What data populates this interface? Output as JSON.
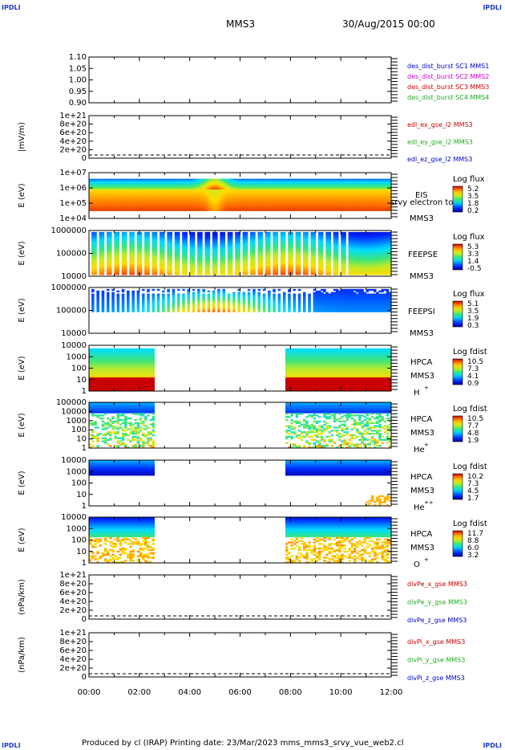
{
  "corner_tag": "IPDLI",
  "header": {
    "left": "MMS3",
    "right": "30/Aug/2015 00:00"
  },
  "footer": "Produced by cl (IRAP)   Printing date: 23/Mar/2023   mms_mms3_srvy_vue_web2.cl",
  "colors": {
    "mms1": "#0000cc",
    "mms2": "#cc00cc",
    "mms3": "#cc0000",
    "mms4": "#22aa22",
    "x": "#cc0000",
    "y": "#22aa22",
    "z": "#0000cc"
  },
  "chart_data": [
    {
      "id": "p1",
      "type": "line",
      "ylabel": "",
      "yticks": [
        "1.10",
        "1.05",
        "1.00",
        "0.95",
        "0.90"
      ],
      "ylim": [
        0.9,
        1.1
      ],
      "legend": [
        {
          "text": "des_dist_burst SC1 MMS1",
          "color": "#0000cc"
        },
        {
          "text": "des_dist_burst SC2 MMS2",
          "color": "#cc00cc"
        },
        {
          "text": "des_dist_burst SC3 MMS3",
          "color": "#cc0000"
        },
        {
          "text": "des_dist_burst SC4 MMS4",
          "color": "#22aa22"
        }
      ]
    },
    {
      "id": "p2",
      "type": "line",
      "ylabel": "|mV/m)",
      "yticks": [
        "1e+21",
        "8e+20",
        "6e+20",
        "4e+20",
        "2e+20",
        "0"
      ],
      "ylim": [
        0,
        1e+21
      ],
      "legend": [
        {
          "text": "edl_ex_gse_l2 MMS3",
          "color": "#cc0000"
        },
        {
          "text": "edl_ey_gse_l2 MMS3",
          "color": "#22aa22"
        },
        {
          "text": "edl_ez_gse_l2 MMS3",
          "color": "#0000cc"
        }
      ]
    },
    {
      "id": "p3",
      "type": "heatmap",
      "ylabel": "E (eV)",
      "yticks": [
        "1e+07",
        "1e+06",
        "1e+05",
        "1e+04"
      ],
      "ylim": [
        10000.0,
        10000000.0
      ],
      "labels": [
        "EIS",
        "srvy electron to",
        "MMS3"
      ],
      "cbar_title": "Log flux",
      "cbar_ticks": [
        "5.2",
        "3.5",
        "1.8",
        "0.2"
      ]
    },
    {
      "id": "p4",
      "type": "heatmap",
      "ylabel": "E (eV)",
      "yticks": [
        "1000000",
        "100000",
        "10000"
      ],
      "ylim": [
        10000.0,
        1000000.0
      ],
      "labels": [
        "FEEPSE",
        "MMS3"
      ],
      "cbar_title": "Log flux",
      "cbar_ticks": [
        "5.3",
        "3.3",
        "1.4",
        "-0.5"
      ]
    },
    {
      "id": "p5",
      "type": "heatmap",
      "ylabel": "E (eV)",
      "yticks": [
        "1000000",
        "100000",
        "10000"
      ],
      "ylim": [
        10000.0,
        1000000.0
      ],
      "labels": [
        "FEEPSI",
        "MMS3"
      ],
      "cbar_title": "Log flux",
      "cbar_ticks": [
        "5.1",
        "3.5",
        "1.9",
        "0.3"
      ]
    },
    {
      "id": "p6",
      "type": "heatmap",
      "ylabel": "E (eV)",
      "yticks": [
        "10000",
        "1000",
        "100",
        "10",
        "1"
      ],
      "ylim": [
        1,
        30000
      ],
      "labels": [
        "HPCA",
        "MMS3",
        "H",
        "+"
      ],
      "cbar_title": "Log fdist",
      "cbar_ticks": [
        "10.5",
        "7.3",
        "4.1",
        "0.9"
      ]
    },
    {
      "id": "p7",
      "type": "heatmap",
      "ylabel": "E (eV)",
      "yticks": [
        "100000",
        "10000",
        "1000",
        "100",
        "10",
        "1"
      ],
      "ylim": [
        1,
        100000
      ],
      "labels": [
        "HPCA",
        "MMS3",
        "He",
        "+"
      ],
      "cbar_title": "Log fdist",
      "cbar_ticks": [
        "10.5",
        "7.7",
        "4.8",
        "1.9"
      ]
    },
    {
      "id": "p8",
      "type": "heatmap",
      "ylabel": "E (eV)",
      "yticks": [
        "10000",
        "1000",
        "100",
        "10",
        "1"
      ],
      "ylim": [
        1,
        30000
      ],
      "labels": [
        "HPCA",
        "MMS3",
        "He",
        "++"
      ],
      "cbar_title": "Log fdist",
      "cbar_ticks": [
        "10.2",
        "7.3",
        "4.5",
        "1.7"
      ]
    },
    {
      "id": "p9",
      "type": "heatmap",
      "ylabel": "E (eV)",
      "yticks": [
        "10000",
        "1000",
        "100",
        "10",
        "1"
      ],
      "ylim": [
        1,
        30000
      ],
      "labels": [
        "HPCA",
        "MMS3",
        "O",
        "+"
      ],
      "cbar_title": "Log fdist",
      "cbar_ticks": [
        "11.7",
        "8.8",
        "6.0",
        "3.2"
      ]
    },
    {
      "id": "p10",
      "type": "line",
      "ylabel": "(nPa/km)",
      "yticks": [
        "1e+21",
        "8e+20",
        "6e+20",
        "4e+20",
        "2e+20",
        "0"
      ],
      "ylim": [
        0,
        1e+21
      ],
      "legend": [
        {
          "text": "divPe_x_gse MMS3",
          "color": "#cc0000"
        },
        {
          "text": "divPe_y_gse MMS3",
          "color": "#22aa22"
        },
        {
          "text": "divPe_z_gse MMS3",
          "color": "#0000cc"
        }
      ]
    },
    {
      "id": "p11",
      "type": "line",
      "ylabel": "(nPa/km)",
      "yticks": [
        "1e+21",
        "8e+20",
        "6e+20",
        "4e+20",
        "2e+20",
        "0"
      ],
      "ylim": [
        0,
        1e+21
      ],
      "legend": [
        {
          "text": "divPi_x_gse MMS3",
          "color": "#cc0000"
        },
        {
          "text": "divPi_y_gse MMS3",
          "color": "#22aa22"
        },
        {
          "text": "divPi_z_gse MMS3",
          "color": "#0000cc"
        }
      ]
    }
  ],
  "xaxis": {
    "ticks": [
      "00:00",
      "02:00",
      "04:00",
      "06:00",
      "08:00",
      "10:00",
      "12:00"
    ],
    "range_hours": [
      0,
      12
    ]
  },
  "hpca_data_gap_hours": [
    2.6,
    7.8
  ]
}
